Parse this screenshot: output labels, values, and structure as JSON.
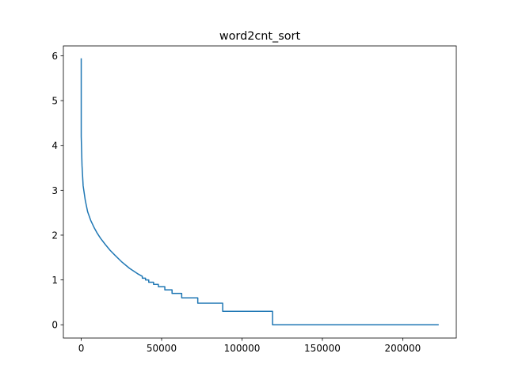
{
  "chart_data": {
    "type": "line",
    "title": "word2cnt_sort",
    "xlabel": "",
    "ylabel": "",
    "xlim": [
      -11100,
      233300
    ],
    "ylim": [
      -0.296,
      6.22
    ],
    "x_ticks": [
      0,
      50000,
      100000,
      150000,
      200000
    ],
    "x_tick_labels": [
      "0",
      "50000",
      "100000",
      "150000",
      "200000"
    ],
    "y_ticks": [
      0,
      1,
      2,
      3,
      4,
      5,
      6
    ],
    "y_tick_labels": [
      "0",
      "1",
      "2",
      "3",
      "4",
      "5",
      "6"
    ],
    "grid": false,
    "legend": "none",
    "series": [
      {
        "color": "#1f77b4",
        "x": [
          0,
          0,
          500,
          1200,
          2500,
          4000,
          6000,
          8000,
          10000,
          12000,
          15000,
          18000,
          21000,
          25000,
          30000,
          35000,
          38000,
          38000,
          40000,
          40000,
          42000,
          42000,
          45000,
          45000,
          48000,
          48000,
          52000,
          52000,
          56500,
          56500,
          62500,
          62500,
          72500,
          72500,
          88000,
          88000,
          119000,
          119000,
          222000
        ],
        "values": [
          5.93,
          4.2,
          3.55,
          3.1,
          2.78,
          2.52,
          2.32,
          2.17,
          2.04,
          1.93,
          1.79,
          1.66,
          1.55,
          1.41,
          1.26,
          1.14,
          1.08,
          1.04,
          1.04,
          1.0,
          1.0,
          0.95,
          0.95,
          0.9,
          0.9,
          0.85,
          0.85,
          0.78,
          0.78,
          0.7,
          0.7,
          0.6,
          0.6,
          0.48,
          0.48,
          0.3,
          0.3,
          0.0,
          0.0
        ]
      }
    ]
  }
}
